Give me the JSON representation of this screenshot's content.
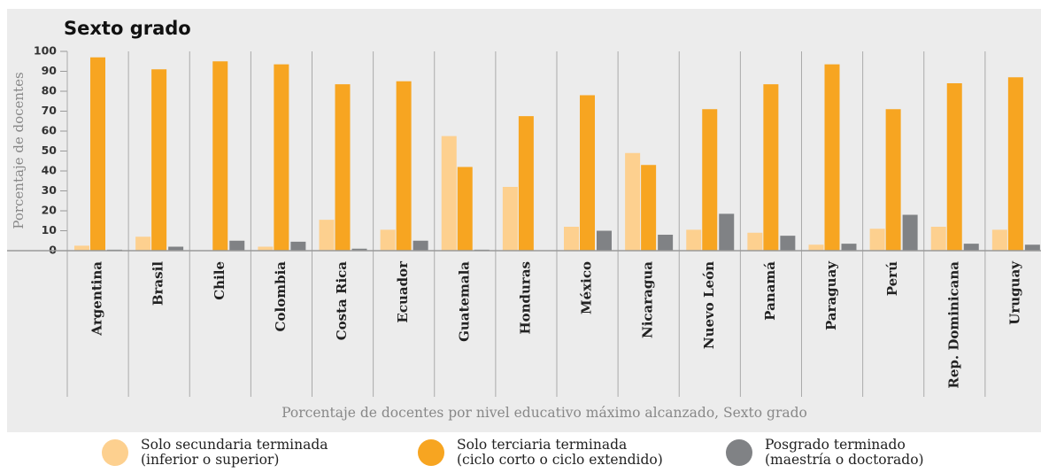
{
  "chart_data": {
    "type": "bar",
    "title": "Sexto grado",
    "ylabel": "Porcentaje de docentes",
    "xlabel": "Porcentaje de docentes por nivel educativo máximo alcanzado, Sexto grado",
    "categories": [
      "Argentina",
      "Brasil",
      "Chile",
      "Colombia",
      "Costa Rica",
      "Ecuador",
      "Guatemala",
      "Honduras",
      "México",
      "Nicaragua",
      "Nuevo León",
      "Panamá",
      "Paraguay",
      "Perú",
      "Rep. Dominicana",
      "Uruguay"
    ],
    "series": [
      {
        "name": "Solo secundaria terminada\n(inferior o superior)",
        "color": "#fdd08f",
        "values": [
          2.5,
          7,
          0,
          2,
          15.5,
          10.5,
          57.5,
          32,
          12,
          49,
          10.5,
          9,
          3,
          11,
          12,
          10.5
        ]
      },
      {
        "name": "Solo terciaria terminada\n(ciclo corto o ciclo extendido)",
        "color": "#f7a521",
        "values": [
          97,
          91,
          95,
          93.5,
          83.5,
          85,
          42,
          67.5,
          78,
          43,
          71,
          83.5,
          93.5,
          71,
          84,
          87
        ]
      },
      {
        "name": "Posgrado terminado\n(maestría o doctorado)",
        "color": "#808285",
        "values": [
          0.5,
          2,
          5,
          4.5,
          1,
          5,
          0.5,
          0,
          10,
          8,
          18.5,
          7.5,
          3.5,
          18,
          3.5,
          3
        ]
      }
    ],
    "ylim": [
      0,
      100
    ],
    "yticks": [
      0,
      10,
      20,
      30,
      40,
      50,
      60,
      70,
      80,
      90,
      100
    ],
    "grid": false
  }
}
